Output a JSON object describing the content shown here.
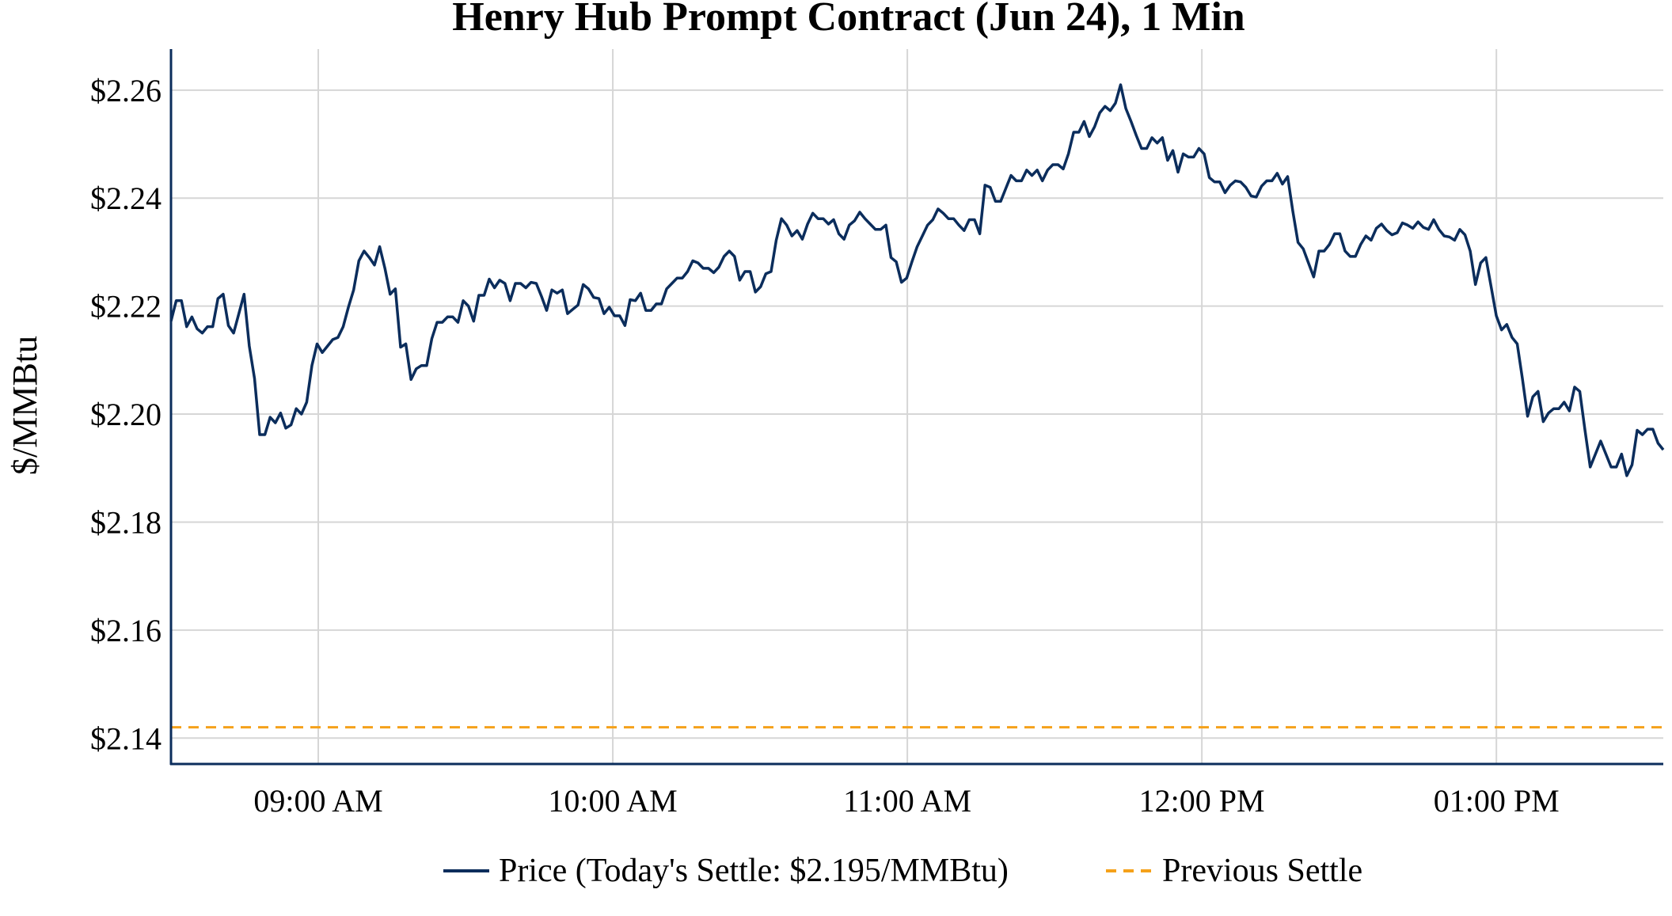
{
  "chart_data": {
    "type": "line",
    "title": "Henry Hub Prompt Contract (Jun 24), 1 Min",
    "xlabel": "",
    "ylabel": "$/MMBtu",
    "x_range": [
      "08:30",
      "13:34"
    ],
    "xlim": [
      "08:30",
      "13:34"
    ],
    "ylim": [
      2.1352,
      2.2676
    ],
    "x_ticks": [
      {
        "time": "09:00",
        "label": "09:00 AM"
      },
      {
        "time": "10:00",
        "label": "10:00 AM"
      },
      {
        "time": "11:00",
        "label": "11:00 AM"
      },
      {
        "time": "12:00",
        "label": "12:00 PM"
      },
      {
        "time": "13:00",
        "label": "01:00 PM"
      }
    ],
    "y_ticks": [
      {
        "value": 2.14,
        "label": "$2.14"
      },
      {
        "value": 2.16,
        "label": "$2.16"
      },
      {
        "value": 2.18,
        "label": "$2.18"
      },
      {
        "value": 2.2,
        "label": "$2.20"
      },
      {
        "value": 2.22,
        "label": "$2.22"
      },
      {
        "value": 2.24,
        "label": "$2.24"
      },
      {
        "value": 2.26,
        "label": "$2.26"
      }
    ],
    "grid": true,
    "legend_placement": "bottom",
    "series": [
      {
        "name": "Price (Today's Settle: $2.195/MMBtu)",
        "color": "#0b2d5c",
        "style": "solid",
        "values": [
          2.2172,
          2.221,
          2.221,
          2.2162,
          2.218,
          2.2158,
          2.215,
          2.2162,
          2.2162,
          2.2214,
          2.2222,
          2.2164,
          2.215,
          2.2186,
          2.2222,
          2.2126,
          2.2066,
          2.1962,
          2.1962,
          2.1994,
          2.1984,
          2.2002,
          2.1974,
          2.198,
          2.201,
          2.2,
          2.2022,
          2.209,
          2.213,
          2.2114,
          2.2126,
          2.2138,
          2.2142,
          2.2162,
          2.2198,
          2.223,
          2.2284,
          2.2302,
          2.229,
          2.2276,
          2.231,
          2.227,
          2.2222,
          2.2232,
          2.2124,
          2.213,
          2.2064,
          2.2084,
          2.209,
          2.209,
          2.214,
          2.217,
          2.217,
          2.218,
          2.218,
          2.217,
          2.221,
          2.22,
          2.2172,
          2.222,
          2.222,
          2.225,
          2.2234,
          2.2248,
          2.2242,
          2.221,
          2.2242,
          2.2242,
          2.2234,
          2.2244,
          2.2242,
          2.2218,
          2.2192,
          2.223,
          2.2224,
          2.223,
          2.2186,
          2.2194,
          2.2202,
          2.224,
          2.2232,
          2.2216,
          2.2214,
          2.2186,
          2.2198,
          2.2182,
          2.2182,
          2.2164,
          2.2212,
          2.221,
          2.2224,
          2.2192,
          2.2192,
          2.2204,
          2.2204,
          2.2232,
          2.2242,
          2.2252,
          2.2252,
          2.2264,
          2.2284,
          2.228,
          2.227,
          2.227,
          2.2262,
          2.2272,
          2.2292,
          2.2302,
          2.2292,
          2.2248,
          2.2264,
          2.2264,
          2.2226,
          2.2236,
          2.226,
          2.2264,
          2.2322,
          2.2362,
          2.235,
          2.233,
          2.234,
          2.2324,
          2.2352,
          2.2372,
          2.2362,
          2.2362,
          2.2352,
          2.236,
          2.2334,
          2.2324,
          2.235,
          2.2358,
          2.2374,
          2.2362,
          2.2352,
          2.2342,
          2.2342,
          2.235,
          2.229,
          2.2282,
          2.2244,
          2.2252,
          2.2282,
          2.231,
          2.233,
          2.235,
          2.236,
          2.238,
          2.2372,
          2.2362,
          2.2362,
          2.235,
          2.234,
          2.236,
          2.236,
          2.2334,
          2.2424,
          2.242,
          2.2394,
          2.2394,
          2.2418,
          2.2442,
          2.2432,
          2.2432,
          2.2452,
          2.2442,
          2.2452,
          2.2432,
          2.2452,
          2.2462,
          2.2462,
          2.2454,
          2.2482,
          2.2522,
          2.2522,
          2.2542,
          2.2514,
          2.2532,
          2.2558,
          2.257,
          2.2562,
          2.2576,
          2.261,
          2.2566,
          2.2542,
          2.2516,
          2.2492,
          2.2492,
          2.2512,
          2.2502,
          2.2512,
          2.247,
          2.2488,
          2.2448,
          2.2482,
          2.2476,
          2.2476,
          2.2492,
          2.2482,
          2.2438,
          2.243,
          2.243,
          2.241,
          2.2424,
          2.2432,
          2.243,
          2.242,
          2.2404,
          2.2402,
          2.2422,
          2.2432,
          2.2432,
          2.2446,
          2.2426,
          2.244,
          2.2376,
          2.2318,
          2.2306,
          2.228,
          2.2254,
          2.2302,
          2.2302,
          2.2314,
          2.2334,
          2.2334,
          2.2302,
          2.2292,
          2.2292,
          2.2314,
          2.233,
          2.2322,
          2.2344,
          2.2352,
          2.234,
          2.2332,
          2.2336,
          2.2354,
          2.235,
          2.2344,
          2.2356,
          2.2346,
          2.2342,
          2.236,
          2.2342,
          2.233,
          2.2328,
          2.2322,
          2.2342,
          2.2332,
          2.2302,
          2.224,
          2.228,
          2.229,
          2.2236,
          2.2182,
          2.2156,
          2.2166,
          2.2142,
          2.213,
          2.2066,
          2.1996,
          2.2032,
          2.2042,
          2.1986,
          2.2002,
          2.201,
          2.201,
          2.2022,
          2.2006,
          2.205,
          2.2042,
          2.197,
          2.1902,
          2.1926,
          2.195,
          2.1926,
          2.1902,
          2.1902,
          2.1926,
          2.1886,
          2.1906,
          2.197,
          2.1962,
          2.1972,
          2.1972,
          2.1946,
          2.1934
        ]
      },
      {
        "name": "Previous Settle",
        "color": "#f5a11a",
        "style": "dashed",
        "value": 2.142
      }
    ]
  }
}
